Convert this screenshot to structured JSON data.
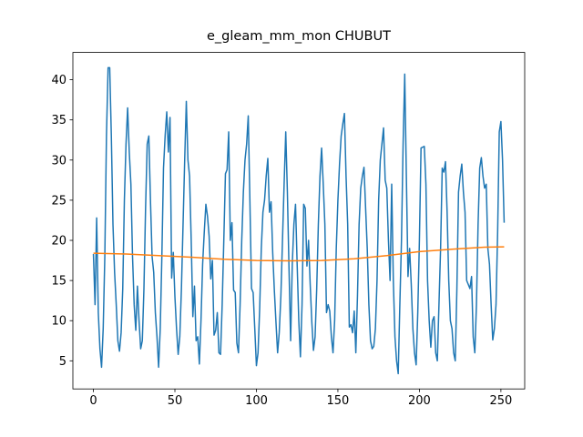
{
  "chart_data": {
    "type": "line",
    "title": "e_gleam_mm_mon CHUBUT",
    "xlim": [
      -12.6,
      264.6
    ],
    "ylim": [
      1.5,
      43.4
    ],
    "xticks": [
      0,
      50,
      100,
      150,
      200,
      250
    ],
    "yticks": [
      5,
      10,
      15,
      20,
      25,
      30,
      35,
      40
    ],
    "series": [
      {
        "color": "#1f77b4",
        "x": [
          0,
          1,
          2,
          3,
          4,
          5,
          6,
          7,
          8,
          9,
          10,
          11,
          12,
          13,
          14,
          15,
          16,
          17,
          18,
          19,
          20,
          21,
          22,
          23,
          24,
          25,
          26,
          27,
          28,
          29,
          30,
          31,
          32,
          33,
          34,
          35,
          36,
          37,
          38,
          39,
          40,
          41,
          42,
          43,
          44,
          45,
          46,
          47,
          48,
          49,
          50,
          51,
          52,
          53,
          54,
          55,
          56,
          57,
          58,
          59,
          60,
          61,
          62,
          63,
          64,
          65,
          66,
          67,
          68,
          69,
          70,
          71,
          72,
          73,
          74,
          75,
          76,
          77,
          78,
          79,
          80,
          81,
          82,
          83,
          84,
          85,
          86,
          87,
          88,
          89,
          90,
          91,
          92,
          93,
          94,
          95,
          96,
          97,
          98,
          99,
          100,
          101,
          102,
          103,
          104,
          105,
          106,
          107,
          108,
          109,
          110,
          111,
          112,
          113,
          114,
          115,
          116,
          117,
          118,
          119,
          120,
          121,
          122,
          123,
          124,
          125,
          126,
          127,
          128,
          129,
          130,
          131,
          132,
          133,
          134,
          135,
          136,
          137,
          138,
          139,
          140,
          141,
          142,
          143,
          144,
          145,
          146,
          147,
          148,
          149,
          150,
          151,
          152,
          153,
          154,
          155,
          156,
          157,
          158,
          159,
          160,
          161,
          162,
          163,
          164,
          165,
          166,
          167,
          168,
          169,
          170,
          171,
          172,
          173,
          174,
          175,
          176,
          177,
          178,
          179,
          180,
          181,
          182,
          183,
          184,
          185,
          186,
          187,
          188,
          189,
          190,
          191,
          192,
          193,
          194,
          195,
          196,
          197,
          198,
          199,
          200,
          201,
          202,
          203,
          204,
          205,
          206,
          207,
          208,
          209,
          210,
          211,
          212,
          213,
          214,
          215,
          216,
          217,
          218,
          219,
          220,
          221,
          222,
          223,
          224,
          225,
          226,
          227,
          228,
          229,
          230,
          231,
          232,
          233,
          234,
          235,
          236,
          237,
          238,
          239,
          240,
          241,
          242,
          243,
          244,
          245,
          246,
          247,
          248,
          249,
          250,
          251,
          252
        ],
        "values": [
          18.3,
          12,
          22.8,
          11,
          6.5,
          4.2,
          9,
          18,
          33,
          41.5,
          41.5,
          33,
          22,
          16,
          12,
          7.5,
          6.2,
          8.5,
          14,
          25,
          32,
          36.5,
          31,
          27,
          18,
          12,
          8.8,
          14.3,
          10,
          6.5,
          7.5,
          14,
          24,
          32,
          33,
          25,
          18,
          16,
          11,
          8,
          4.2,
          9,
          18,
          29,
          33,
          36,
          31,
          35.3,
          15.3,
          18.5,
          13,
          9,
          5.8,
          8,
          14,
          22,
          30,
          37.3,
          30,
          28,
          20,
          10.5,
          14.3,
          7.5,
          8,
          4.6,
          10,
          17,
          21,
          24.5,
          23,
          20.5,
          15.2,
          17.5,
          8.2,
          8.8,
          11,
          6,
          5.8,
          12,
          20,
          28.3,
          28.8,
          33.5,
          20,
          22.2,
          13.8,
          13.5,
          7.2,
          6,
          12,
          20,
          26,
          30,
          32,
          35.5,
          25,
          14,
          13.5,
          9,
          4.4,
          6,
          11.5,
          19,
          23.5,
          25,
          28,
          30.2,
          23.5,
          24.8,
          18.5,
          13.8,
          9.8,
          6,
          8.5,
          13,
          20,
          27,
          33.5,
          26,
          16.5,
          7.5,
          17,
          22,
          24.5,
          17,
          10,
          5.5,
          12,
          24.5,
          24,
          16.8,
          20,
          14.5,
          9.8,
          6.3,
          8,
          14,
          22,
          28,
          31.5,
          27,
          22,
          11,
          12,
          11.2,
          8,
          6,
          10,
          19,
          25,
          29.5,
          33,
          34.5,
          35.8,
          28,
          22,
          9.2,
          9.5,
          8.5,
          11.2,
          6,
          13,
          22,
          26.5,
          28,
          29.1,
          24,
          19,
          12,
          7.5,
          6.5,
          6.8,
          9,
          15,
          25,
          30,
          32,
          34,
          27.5,
          26.5,
          20,
          15,
          27,
          15,
          8,
          5,
          3.4,
          12,
          20,
          32,
          40.7,
          28,
          15.5,
          19,
          14.5,
          9,
          6,
          4.5,
          11,
          20,
          31.5,
          31.6,
          31.7,
          27,
          15,
          10,
          6.7,
          10,
          10.5,
          6,
          5,
          12,
          19,
          29,
          28.5,
          29.8,
          23.5,
          15,
          10,
          9,
          6,
          5,
          14,
          26,
          28,
          29.5,
          26,
          23.5,
          15,
          14.5,
          14,
          15.5,
          8,
          6,
          12,
          22,
          29,
          30.3,
          28,
          26.5,
          27,
          19,
          17,
          12,
          7.6,
          9,
          12,
          21,
          33.5,
          34.8,
          30,
          22.2
        ]
      },
      {
        "color": "#ff7f0e",
        "x": [
          0,
          20,
          40,
          60,
          80,
          100,
          120,
          140,
          160,
          180,
          200,
          220,
          240,
          252
        ],
        "values": [
          18.4,
          18.3,
          18.1,
          17.9,
          17.65,
          17.5,
          17.45,
          17.5,
          17.7,
          18.1,
          18.6,
          18.9,
          19.15,
          19.2
        ]
      }
    ]
  }
}
